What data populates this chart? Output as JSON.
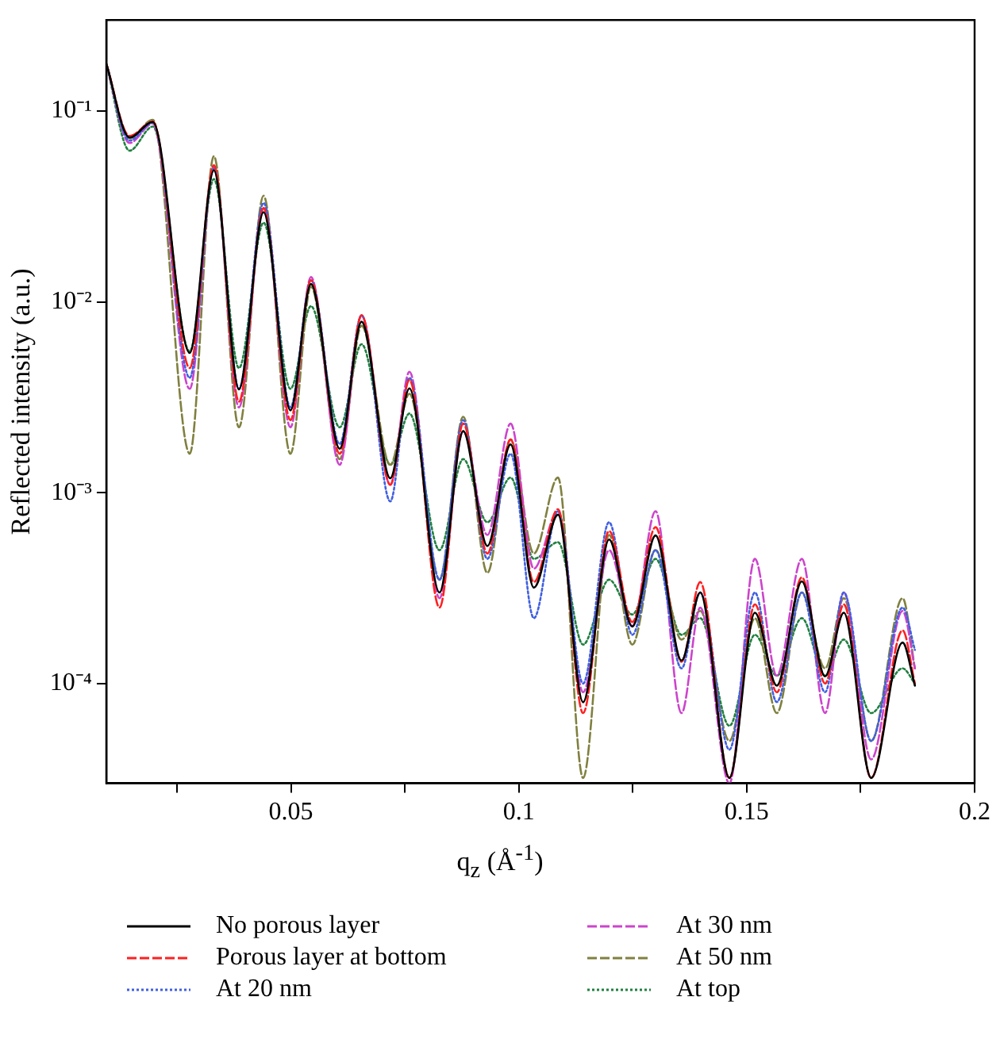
{
  "chart_data": {
    "type": "line",
    "xlabel": "q$_{z}$ (Å$^{-1}$)",
    "ylabel": "Reflected intensity (a.u.)",
    "log": "y",
    "grid": false,
    "legend": "bottom",
    "marker": "none",
    "x": [
      0.0095,
      0.0146,
      0.0197,
      0.0278,
      0.0331,
      0.0386,
      0.044,
      0.0499,
      0.0544,
      0.0607,
      0.0655,
      0.0718,
      0.076,
      0.0826,
      0.0878,
      0.0931,
      0.0982,
      0.1033,
      0.1086,
      0.1141,
      0.1198,
      0.1249,
      0.13,
      0.1357,
      0.1398,
      0.1462,
      0.1518,
      0.1566,
      0.1621,
      0.1672,
      0.1713,
      0.1773,
      0.1842,
      0.1869
    ],
    "xlim": [
      0.0095,
      0.2
    ],
    "xticks": [
      {
        "value": 0.025,
        "label": null
      },
      0.05,
      {
        "value": 0.075,
        "label": null
      },
      0.1,
      {
        "value": 0.125,
        "label": null
      },
      0.15,
      {
        "value": 0.175,
        "label": null
      },
      0.2
    ],
    "ylim": [
      3e-05,
      0.3
    ],
    "yticks": [
      {
        "value": 0.0001,
        "label": "10⁻⁴"
      },
      {
        "value": 0.001,
        "label": "10⁻³"
      },
      {
        "value": 0.01,
        "label": "10⁻²"
      },
      {
        "value": 0.1,
        "label": "10⁻¹"
      }
    ],
    "series": [
      {
        "name": "No porous layer",
        "color": "#000000",
        "line_style": "solid",
        "values": [
          0.177,
          0.0726,
          0.0877,
          0.0054,
          0.0489,
          0.00348,
          0.0295,
          0.0027,
          0.0124,
          0.0017,
          0.00787,
          0.00119,
          0.00352,
          0.0003,
          0.0021,
          0.000526,
          0.00179,
          0.000318,
          0.000767,
          7.98e-05,
          0.000568,
          0.000199,
          0.000597,
          0.000132,
          0.0003,
          3.2e-05,
          0.000235,
          9.75e-05,
          0.000343,
          0.000109,
          0.000235,
          3.2e-05,
          0.000164,
          9.75e-05
        ]
      },
      {
        "name": "Porous layer at bottom",
        "color": "#ff2020",
        "line_style": "dashed",
        "values": [
          0.177,
          0.074,
          0.088,
          0.0045,
          0.052,
          0.003,
          0.031,
          0.0024,
          0.013,
          0.0016,
          0.0085,
          0.0011,
          0.0039,
          0.00025,
          0.0023,
          0.00048,
          0.0019,
          0.00034,
          0.00082,
          7e-05,
          0.00063,
          0.00021,
          0.00066,
          0.00013,
          0.00034,
          3.2e-05,
          0.00026,
          9e-05,
          0.00036,
          0.0001,
          0.00026,
          3.2e-05,
          0.00019,
          0.0001
        ]
      },
      {
        "name": "At 20 nm",
        "color": "#4060e0",
        "line_style": "dotted",
        "values": [
          0.177,
          0.07,
          0.087,
          0.004,
          0.05,
          0.0035,
          0.033,
          0.0028,
          0.013,
          0.0018,
          0.0085,
          0.0009,
          0.004,
          0.00035,
          0.0024,
          0.00045,
          0.0016,
          0.00022,
          0.0008,
          0.0001,
          0.0007,
          0.00018,
          0.0005,
          0.00012,
          0.0003,
          4.5e-05,
          0.0003,
          8e-05,
          0.0003,
          9e-05,
          0.0003,
          5e-05,
          0.00025,
          0.00015
        ]
      },
      {
        "name": "At 30 nm",
        "color": "#cc44cc",
        "line_style": "dashed",
        "values": [
          0.177,
          0.068,
          0.086,
          0.0035,
          0.051,
          0.0028,
          0.031,
          0.0022,
          0.0135,
          0.0014,
          0.0085,
          0.0011,
          0.0043,
          0.00028,
          0.0021,
          0.0006,
          0.0023,
          0.0004,
          0.0008,
          9e-05,
          0.0005,
          0.0002,
          0.0008,
          7e-05,
          0.00025,
          3e-05,
          0.00045,
          0.00011,
          0.00045,
          7e-05,
          0.0003,
          4e-05,
          0.00024,
          0.00012
        ]
      },
      {
        "name": "At 50 nm",
        "color": "#808040",
        "line_style": "dashed",
        "values": [
          0.177,
          0.072,
          0.09,
          0.0016,
          0.058,
          0.0022,
          0.036,
          0.0016,
          0.012,
          0.0015,
          0.0075,
          0.0014,
          0.0033,
          0.00035,
          0.0025,
          0.00038,
          0.0019,
          0.00048,
          0.0012,
          3.2e-05,
          0.0006,
          0.00016,
          0.0005,
          0.00017,
          0.00024,
          5e-05,
          0.00022,
          7e-05,
          0.0003,
          0.00012,
          0.00028,
          5e-05,
          0.00028,
          0.00012
        ]
      },
      {
        "name": "At top",
        "color": "#208040",
        "line_style": "dotted",
        "values": [
          0.177,
          0.062,
          0.083,
          0.0055,
          0.044,
          0.0045,
          0.026,
          0.0035,
          0.0095,
          0.0022,
          0.006,
          0.0014,
          0.0026,
          0.0005,
          0.0015,
          0.0007,
          0.0012,
          0.00045,
          0.00055,
          0.00016,
          0.00035,
          0.00023,
          0.00045,
          0.00018,
          0.00022,
          6e-05,
          0.00018,
          0.00011,
          0.00022,
          0.00011,
          0.00017,
          7e-05,
          0.00012,
          0.0001
        ]
      }
    ]
  }
}
